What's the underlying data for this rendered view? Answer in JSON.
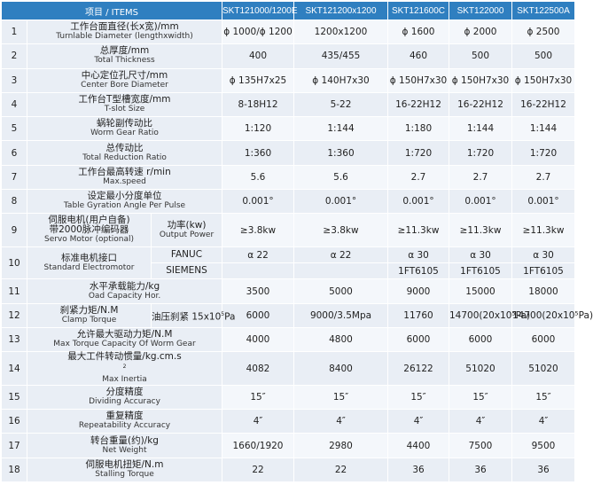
{
  "header": {
    "item": "项目 / ITEMS",
    "models": [
      "SKT121000/1200E",
      "SKT121200x1200",
      "SKT121600C",
      "SKT122000",
      "SKT122500A"
    ]
  },
  "rows": [
    {
      "no": "1",
      "cn": "工作台面直径(长x宽)/mm",
      "en": "Turnlable Diameter (lengthxwidth)",
      "vals": [
        "ϕ 1000/ϕ 1200",
        "1200x1200",
        "ϕ 1600",
        "ϕ 2000",
        "ϕ 2500"
      ]
    },
    {
      "no": "2",
      "cn": "总厚度/mm",
      "en": "Total Thickness",
      "vals": [
        "400",
        "435/455",
        "460",
        "500",
        "500"
      ]
    },
    {
      "no": "3",
      "cn": "中心定位孔尺寸/mm",
      "en": "Center Bore Diameter",
      "vals": [
        "ϕ 135H7x25",
        "ϕ 140H7x30",
        "ϕ 150H7x30",
        "ϕ 150H7x30",
        "ϕ 150H7x30"
      ]
    },
    {
      "no": "4",
      "cn": "工作台T型槽宽度/mm",
      "en": "T-slot Size",
      "vals": [
        "8-18H12",
        "5-22",
        "16-22H12",
        "16-22H12",
        "16-22H12"
      ]
    },
    {
      "no": "5",
      "cn": "蜗轮副传动比",
      "en": "Worm Gear Ratio",
      "vals": [
        "1:120",
        "1:144",
        "1:180",
        "1:144",
        "1:144"
      ]
    },
    {
      "no": "6",
      "cn": "总传动比",
      "en": "Total Reduction Ratio",
      "vals": [
        "1:360",
        "1:360",
        "1:720",
        "1:720",
        "1:720"
      ]
    },
    {
      "no": "7",
      "cn": "工作台最高转速 r/min",
      "en": "Max.speed",
      "vals": [
        "5.6",
        "5.6",
        "2.7",
        "2.7",
        "2.7"
      ]
    },
    {
      "no": "8",
      "cn": "设定最小分度单位",
      "en": "Table Gyration Angle Per Pulse",
      "vals": [
        "0.001°",
        "0.001°",
        "0.001°",
        "0.001°",
        "0.001°"
      ]
    },
    {
      "no": "9",
      "cn": "伺服电机(用户自备)",
      "cn2": "带2000脉冲编码器",
      "en": "Servo Motor (optional)",
      "sub_cn": "功率(kw)",
      "sub_en": "Output Power",
      "vals": [
        "≥3.8kw",
        "≥3.8kw",
        "≥11.3kw",
        "≥11.3kw",
        "≥11.3kw"
      ]
    },
    {
      "no": "10",
      "cn": "标准电机接口",
      "en": "Standard Electromotor",
      "subs": [
        {
          "label": "FANUC",
          "vals": [
            "α 22",
            "α 22",
            "α 30",
            "α 30",
            "α 30"
          ]
        },
        {
          "label": "SIEMENS",
          "vals": [
            "",
            "",
            "1FT6105",
            "1FT6105",
            "1FT6105"
          ]
        }
      ]
    },
    {
      "no": "11",
      "cn": "水平承载能力/kg",
      "en": "Oad Capacity Hor.",
      "vals": [
        "3500",
        "5000",
        "9000",
        "15000",
        "18000"
      ]
    },
    {
      "no": "12",
      "cn": "刹紧力矩/N.M",
      "en": "Clamp Torque",
      "sub_cn": "油压刹紧 15x10",
      "sub_sup": "5",
      "sub_tail": "Pa",
      "vals": [
        "6000",
        "9000/3.5Mpa",
        "11760",
        "14700(20x10⁵Pa)",
        "14700(20x10⁵Pa)"
      ]
    },
    {
      "no": "13",
      "cn": "允许最大驱动力矩/N.M",
      "en": "Max Torque Capacity Of Worm Gear",
      "vals": [
        "4000",
        "4800",
        "6000",
        "6000",
        "6000"
      ]
    },
    {
      "no": "14",
      "cn": "最大工件转动惯量/kg.cm.s",
      "cn_sup": "2",
      "en": "Max Inertia",
      "vals": [
        "4082",
        "8400",
        "26122",
        "51020",
        "51020"
      ]
    },
    {
      "no": "15",
      "cn": "分度精度",
      "en": "Dividing Accuracy",
      "vals": [
        "15″",
        "15″",
        "15″",
        "15″",
        "15″"
      ]
    },
    {
      "no": "16",
      "cn": "重复精度",
      "en": "Repeatability Accuracy",
      "vals": [
        "4″",
        "4″",
        "4″",
        "4″",
        "4″"
      ]
    },
    {
      "no": "17",
      "cn": "转台重量(约)/kg",
      "en": "Net Weight",
      "vals": [
        "1660/1920",
        "2980",
        "4400",
        "7500",
        "9500"
      ]
    },
    {
      "no": "18",
      "cn": "伺服电机扭矩/N.m",
      "en": "Stalling Torque",
      "vals": [
        "22",
        "22",
        "36",
        "36",
        "36"
      ]
    }
  ]
}
